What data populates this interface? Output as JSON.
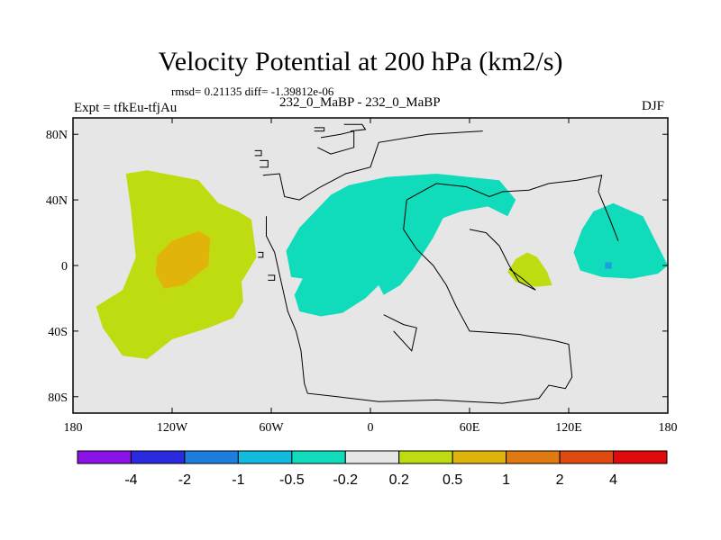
{
  "header": {
    "title": "Velocity Potential at 200 hPa (km2/s)",
    "stats": "rmsd= 0.21135 diff= -1.39812e-06",
    "expt": "Expt = tfkEu-tfjAu",
    "runs": "232_0_MaBP - 232_0_MaBP",
    "season": "DJF"
  },
  "chart_data": {
    "type": "heatmap",
    "title": "Velocity Potential at 200 hPa (km2/s)",
    "xlabel": "",
    "ylabel": "",
    "xlim": [
      -180,
      180
    ],
    "ylim": [
      -90,
      90
    ],
    "x_ticks": [
      {
        "value": -180,
        "label": "180"
      },
      {
        "value": -120,
        "label": "120W"
      },
      {
        "value": -60,
        "label": "60W"
      },
      {
        "value": 0,
        "label": "0"
      },
      {
        "value": 60,
        "label": "60E"
      },
      {
        "value": 120,
        "label": "120E"
      },
      {
        "value": 180,
        "label": "180"
      }
    ],
    "y_ticks": [
      {
        "value": 80,
        "label": "80N"
      },
      {
        "value": 40,
        "label": "40N"
      },
      {
        "value": 0,
        "label": "0"
      },
      {
        "value": -40,
        "label": "40S"
      },
      {
        "value": -80,
        "label": "80S"
      }
    ],
    "background_color": "#e6e6e6",
    "contour_levels": [
      "-4",
      "-2",
      "-1",
      "-0.5",
      "-0.2",
      "0.2",
      "0.5",
      "1",
      "2",
      "4"
    ],
    "colorbar_colors": [
      "#8a12e6",
      "#2a2ae0",
      "#1e7ee0",
      "#10bce0",
      "#10dcbc",
      "#e6e6e6",
      "#bedc10",
      "#e0b40a",
      "#e07a10",
      "#e04a10",
      "#e00a0a"
    ],
    "regions": [
      {
        "name": "east-pacific-positive",
        "color": "#bedc10",
        "points": [
          [
            -148,
            56
          ],
          [
            -135,
            58
          ],
          [
            -104,
            52
          ],
          [
            -92,
            38
          ],
          [
            -80,
            33
          ],
          [
            -72,
            28
          ],
          [
            -69,
            5
          ],
          [
            -78,
            -10
          ],
          [
            -77,
            -22
          ],
          [
            -83,
            -32
          ],
          [
            -98,
            -38
          ],
          [
            -120,
            -45
          ],
          [
            -135,
            -57
          ],
          [
            -150,
            -55
          ],
          [
            -162,
            -38
          ],
          [
            -166,
            -25
          ],
          [
            -150,
            -15
          ],
          [
            -142,
            5
          ],
          [
            -145,
            35
          ]
        ]
      },
      {
        "name": "east-pacific-core",
        "color": "#e0b40a",
        "points": [
          [
            -120,
            15
          ],
          [
            -104,
            21
          ],
          [
            -97,
            17
          ],
          [
            -98,
            0
          ],
          [
            -113,
            -12
          ],
          [
            -125,
            -14
          ],
          [
            -130,
            -5
          ],
          [
            -129,
            6
          ]
        ]
      },
      {
        "name": "africa-europe-asia-negative",
        "color": "#10dcbc",
        "points": [
          [
            -13,
            49
          ],
          [
            10,
            54
          ],
          [
            40,
            56
          ],
          [
            78,
            52
          ],
          [
            88,
            40
          ],
          [
            83,
            30
          ],
          [
            71,
            36
          ],
          [
            55,
            33
          ],
          [
            44,
            29
          ],
          [
            38,
            17
          ],
          [
            26,
            -2
          ],
          [
            18,
            -12
          ],
          [
            8,
            -18
          ],
          [
            5,
            -12
          ],
          [
            -3,
            -20
          ],
          [
            -17,
            -29
          ],
          [
            -30,
            -31
          ],
          [
            -43,
            -28
          ],
          [
            -46,
            -18
          ],
          [
            -41,
            -8
          ],
          [
            -48,
            -7
          ],
          [
            -51,
            9
          ],
          [
            -43,
            23
          ],
          [
            -24,
            43
          ]
        ]
      },
      {
        "name": "maritime-continent-positive",
        "color": "#bedc10",
        "points": [
          [
            88,
            4
          ],
          [
            95,
            8
          ],
          [
            101,
            5
          ],
          [
            107,
            -4
          ],
          [
            110,
            -12
          ],
          [
            100,
            -13
          ],
          [
            88,
            -10
          ],
          [
            83,
            -4
          ]
        ]
      },
      {
        "name": "west-pacific-negative",
        "color": "#10dcbc",
        "points": [
          [
            147,
            38
          ],
          [
            165,
            30
          ],
          [
            176,
            8
          ],
          [
            180,
            0
          ],
          [
            174,
            -5
          ],
          [
            158,
            -8
          ],
          [
            140,
            -7
          ],
          [
            127,
            -3
          ],
          [
            123,
            8
          ],
          [
            128,
            22
          ],
          [
            135,
            33
          ]
        ]
      },
      {
        "name": "west-pacific-dot",
        "color": "#1e9ee0",
        "points": [
          [
            142,
            2
          ],
          [
            146,
            2
          ],
          [
            146,
            -2
          ],
          [
            142,
            -2
          ]
        ]
      }
    ],
    "coastlines": [
      [
        [
          -63,
          30
        ],
        [
          -63,
          18
        ],
        [
          -58,
          8
        ],
        [
          -54,
          -10
        ],
        [
          -50,
          -28
        ],
        [
          -45,
          -40
        ],
        [
          -42,
          -52
        ],
        [
          -40,
          -72
        ],
        [
          -38,
          -78
        ],
        [
          -20,
          -80
        ],
        [
          5,
          -83
        ],
        [
          40,
          -82
        ],
        [
          80,
          -84
        ],
        [
          102,
          -81
        ],
        [
          108,
          -73
        ],
        [
          118,
          -75
        ],
        [
          122,
          -68
        ],
        [
          120,
          -48
        ],
        [
          112,
          -46
        ],
        [
          90,
          -42
        ],
        [
          60,
          -40
        ],
        [
          52,
          -25
        ],
        [
          46,
          -12
        ],
        [
          38,
          0
        ],
        [
          28,
          10
        ],
        [
          20,
          22
        ],
        [
          22,
          40
        ],
        [
          40,
          50
        ],
        [
          58,
          48
        ],
        [
          72,
          42
        ],
        [
          80,
          45
        ],
        [
          96,
          46
        ],
        [
          108,
          50
        ],
        [
          125,
          52
        ],
        [
          140,
          55
        ],
        [
          138,
          45
        ],
        [
          145,
          28
        ],
        [
          150,
          15
        ]
      ],
      [
        [
          -65,
          55
        ],
        [
          -55,
          56
        ],
        [
          -52,
          42
        ],
        [
          -43,
          40
        ],
        [
          -30,
          48
        ],
        [
          -15,
          56
        ],
        [
          0,
          60
        ],
        [
          5,
          75
        ],
        [
          35,
          80
        ],
        [
          68,
          82
        ]
      ],
      [
        [
          -30,
          78
        ],
        [
          -18,
          80
        ],
        [
          -10,
          82
        ],
        [
          -10,
          72
        ],
        [
          -24,
          68
        ],
        [
          -32,
          72
        ]
      ],
      [
        [
          -16,
          86
        ],
        [
          -5,
          86
        ],
        [
          -3,
          83
        ],
        [
          -12,
          82
        ]
      ],
      [
        [
          8,
          -30
        ],
        [
          20,
          -36
        ],
        [
          28,
          -38
        ],
        [
          25,
          -52
        ],
        [
          14,
          -40
        ]
      ],
      [
        [
          60,
          22
        ],
        [
          70,
          20
        ],
        [
          78,
          12
        ],
        [
          84,
          0
        ],
        [
          90,
          -10
        ],
        [
          100,
          -15
        ],
        [
          92,
          -8
        ],
        [
          84,
          -2
        ]
      ],
      [
        [
          -34,
          84
        ],
        [
          -28,
          84
        ],
        [
          -28,
          82
        ],
        [
          -34,
          82
        ]
      ],
      [
        [
          -68,
          8
        ],
        [
          -65,
          8
        ],
        [
          -65,
          5
        ],
        [
          -68,
          5
        ]
      ],
      [
        [
          -62,
          -6
        ],
        [
          -58,
          -6
        ],
        [
          -58,
          -9
        ],
        [
          -62,
          -9
        ]
      ],
      [
        [
          -67,
          64
        ],
        [
          -62,
          64
        ],
        [
          -62,
          60
        ],
        [
          -67,
          60
        ]
      ],
      [
        [
          -70,
          70
        ],
        [
          -66,
          70
        ],
        [
          -66,
          67
        ],
        [
          -70,
          67
        ]
      ]
    ]
  }
}
